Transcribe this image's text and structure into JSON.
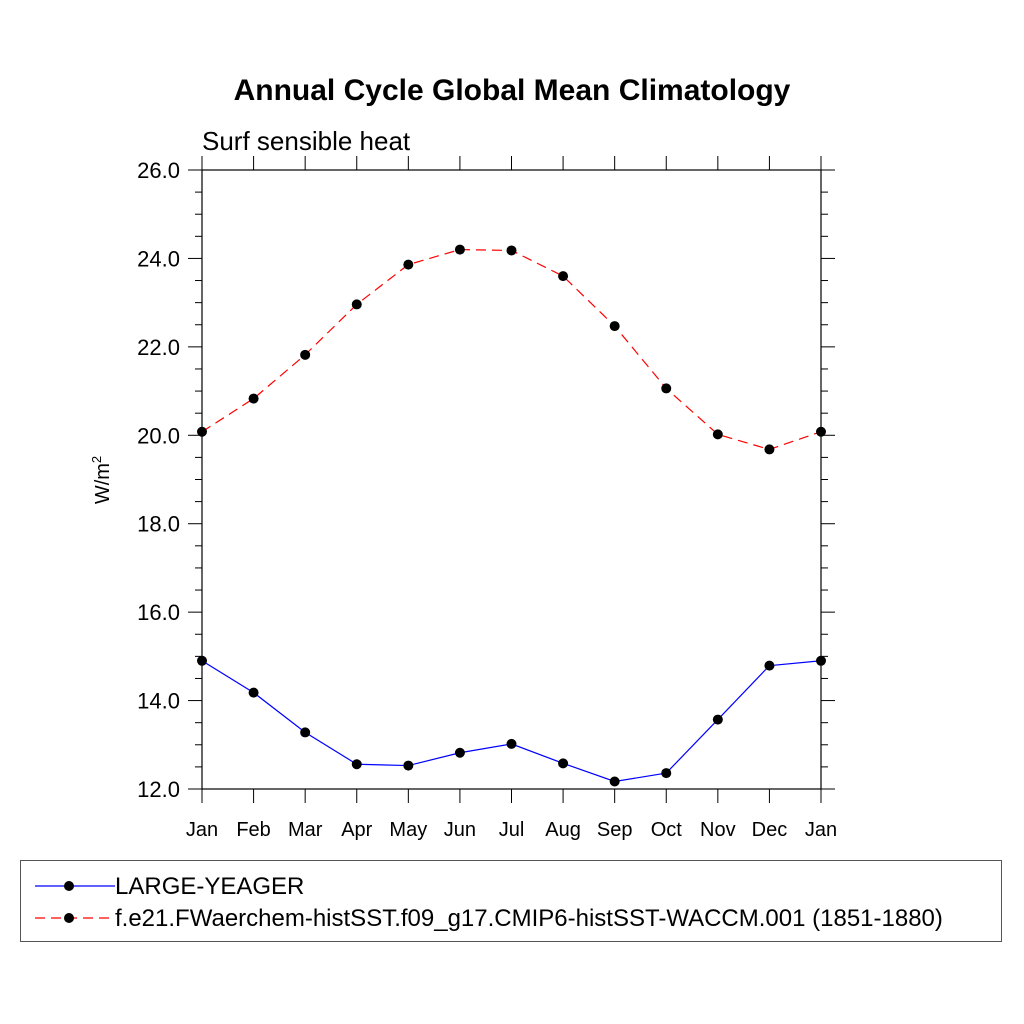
{
  "chart_data": {
    "type": "line",
    "title": "Annual Cycle Global Mean Climatology",
    "subtitle": "Surf sensible heat",
    "ylabel_base": "W/m",
    "ylabel_sup": "2",
    "xlabel": "",
    "categories": [
      "Jan",
      "Feb",
      "Mar",
      "Apr",
      "May",
      "Jun",
      "Jul",
      "Aug",
      "Sep",
      "Oct",
      "Nov",
      "Dec",
      "Jan"
    ],
    "ylim": [
      12.0,
      26.0
    ],
    "yticks": [
      12.0,
      14.0,
      16.0,
      18.0,
      20.0,
      22.0,
      24.0,
      26.0
    ],
    "ytick_labels": [
      "12.0",
      "14.0",
      "16.0",
      "18.0",
      "20.0",
      "22.0",
      "24.0",
      "26.0"
    ],
    "series": [
      {
        "name": "LARGE-YEAGER",
        "color": "#0000ff",
        "dash": "solid",
        "values": [
          14.9,
          14.18,
          13.28,
          12.56,
          12.53,
          12.82,
          13.02,
          12.58,
          12.17,
          12.36,
          13.57,
          14.79,
          14.9
        ]
      },
      {
        "name": "f.e21.FWaerchem-histSST.f09_g17.CMIP6-histSST-WACCM.001 (1851-1880)",
        "color": "#ff0000",
        "dash": "dashed",
        "values": [
          20.08,
          20.83,
          21.82,
          22.96,
          23.86,
          24.2,
          24.18,
          23.6,
          22.47,
          21.06,
          20.02,
          19.68,
          20.08
        ]
      }
    ],
    "grid": false,
    "legend_position": "bottom"
  }
}
